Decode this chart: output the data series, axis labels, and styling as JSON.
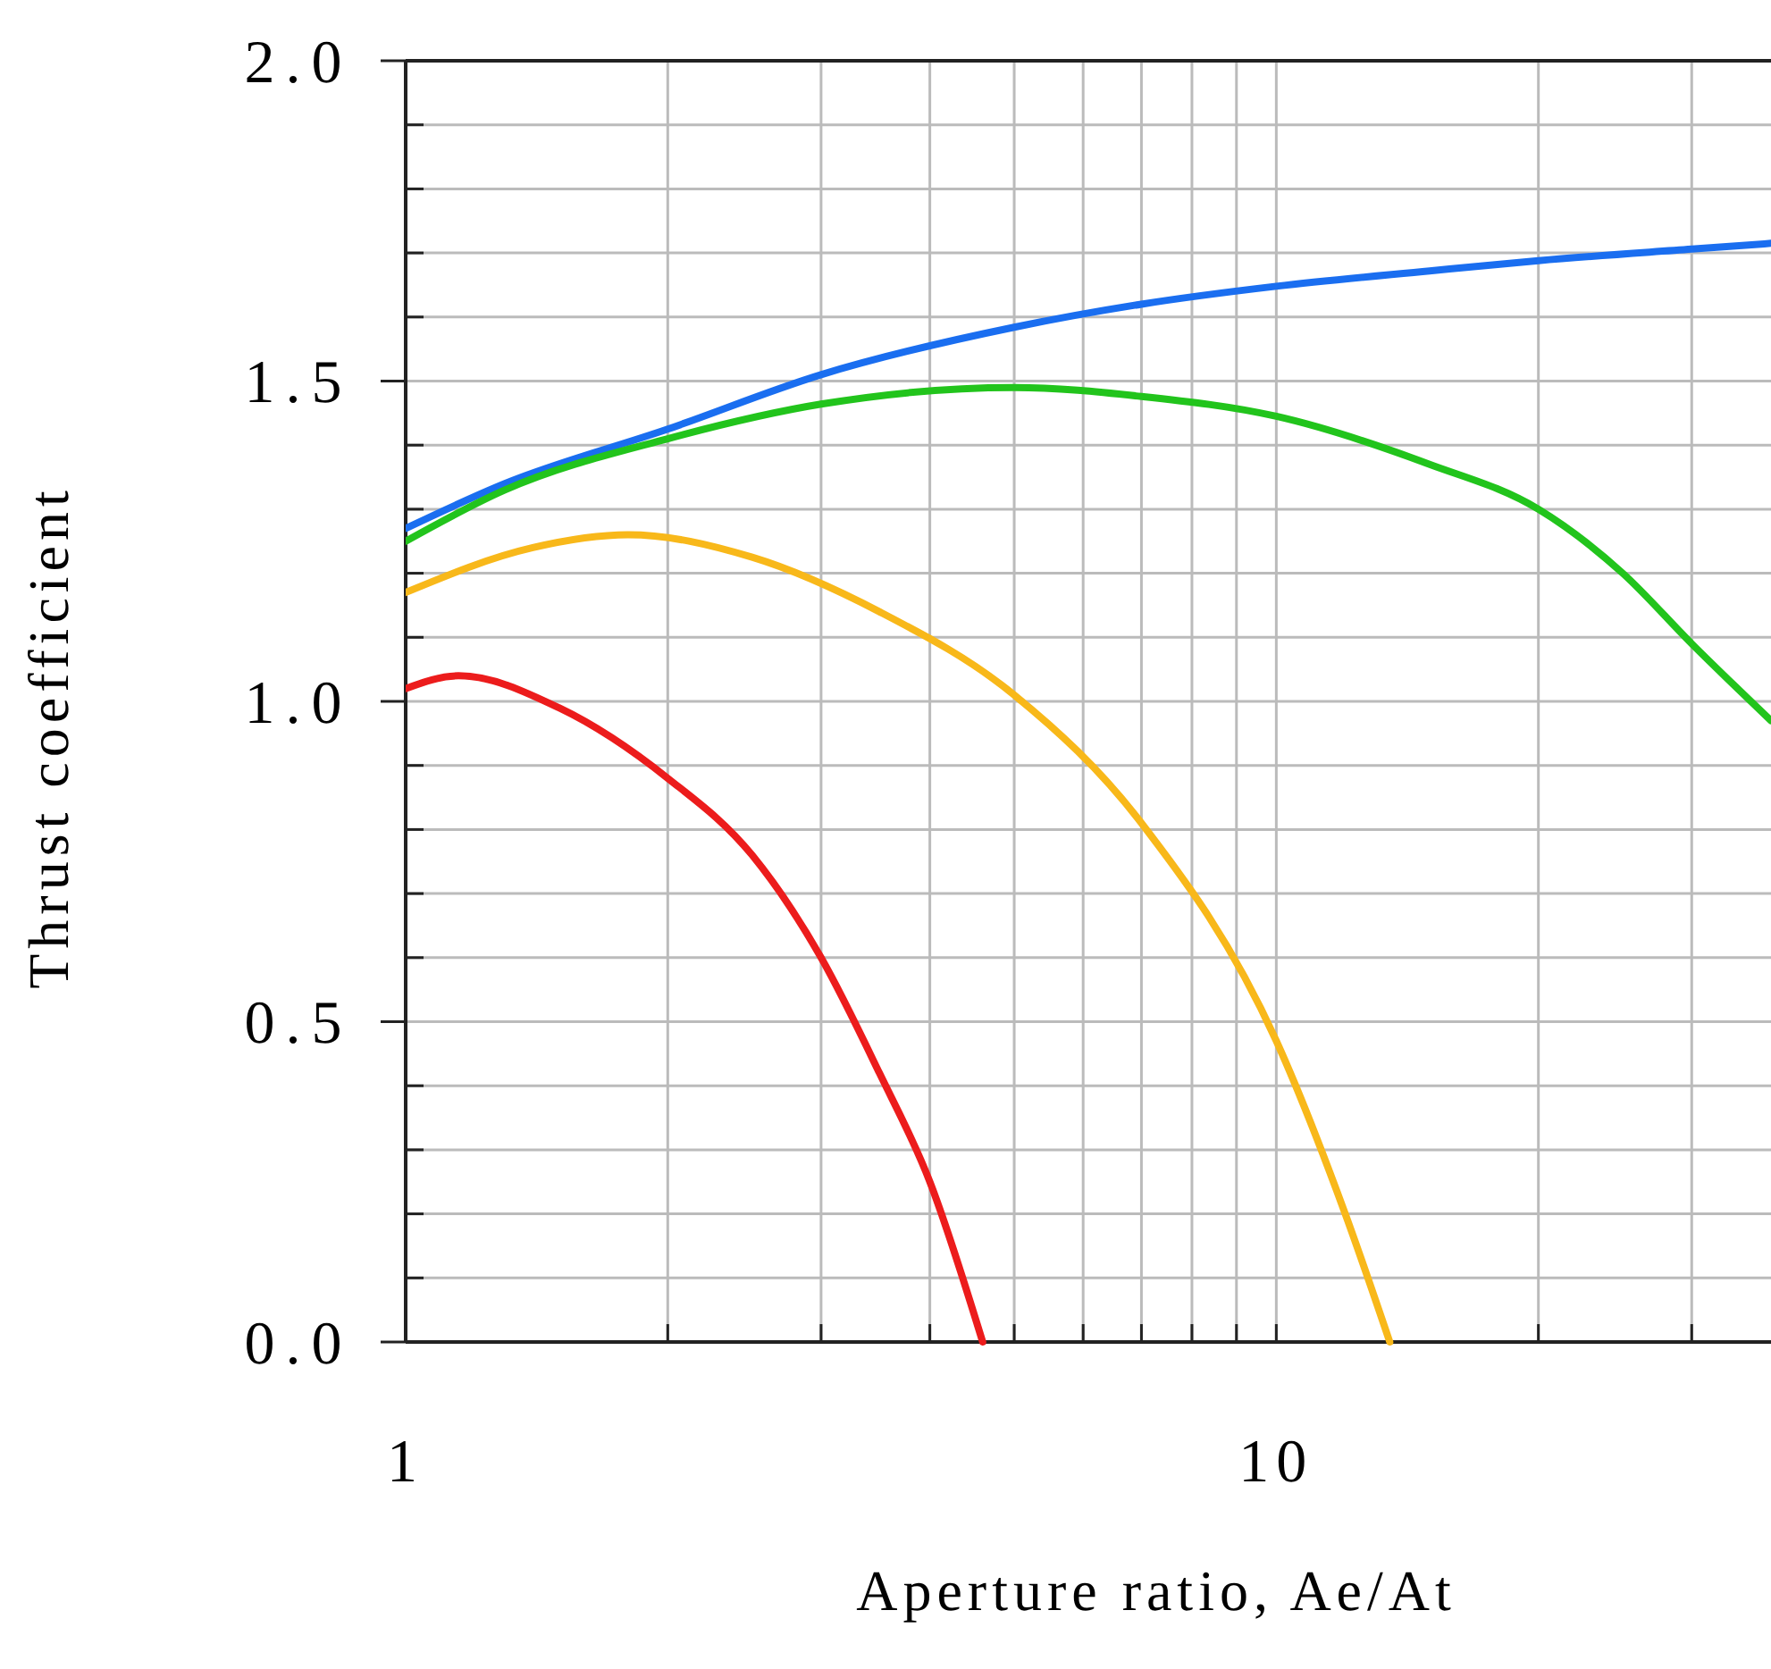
{
  "chart_data": {
    "type": "line",
    "xlabel": "Aperture ratio, Ae/At",
    "ylabel": "Thrust coefficient",
    "log": "x",
    "grid": true,
    "marker": "none",
    "line_style": "solid",
    "xlim": [
      1,
      37
    ],
    "xticks": [
      1,
      {
        "value": 2,
        "label": null
      },
      {
        "value": 3,
        "label": null
      },
      {
        "value": 4,
        "label": null
      },
      {
        "value": 5,
        "label": null
      },
      {
        "value": 6,
        "label": null
      },
      {
        "value": 7,
        "label": null
      },
      {
        "value": 8,
        "label": null
      },
      {
        "value": 9,
        "label": null
      },
      10,
      {
        "value": 20,
        "label": null
      },
      {
        "value": 30,
        "label": null
      }
    ],
    "ylim": [
      0,
      2
    ],
    "yticks": [
      {
        "value": 0,
        "label": "0.0"
      },
      {
        "value": 0.1,
        "label": null
      },
      {
        "value": 0.2,
        "label": null
      },
      {
        "value": 0.3,
        "label": null
      },
      {
        "value": 0.4,
        "label": null
      },
      {
        "value": 0.5,
        "label": "0.5"
      },
      {
        "value": 0.6,
        "label": null
      },
      {
        "value": 0.7,
        "label": null
      },
      {
        "value": 0.8,
        "label": null
      },
      {
        "value": 0.9,
        "label": null
      },
      {
        "value": 1,
        "label": "1.0"
      },
      {
        "value": 1.1,
        "label": null
      },
      {
        "value": 1.2,
        "label": null
      },
      {
        "value": 1.3,
        "label": null
      },
      {
        "value": 1.4,
        "label": null
      },
      {
        "value": 1.5,
        "label": "1.5"
      },
      {
        "value": 1.6,
        "label": null
      },
      {
        "value": 1.7,
        "label": null
      },
      {
        "value": 1.8,
        "label": null
      },
      {
        "value": 1.9,
        "label": null
      },
      {
        "value": 2,
        "label": "2.0"
      }
    ],
    "series": [
      {
        "color": "#1a6ef0",
        "x": [
          1,
          1.3,
          2,
          3,
          5,
          7,
          10,
          15,
          20,
          30,
          37
        ],
        "values": [
          1.27,
          1.34,
          1.425,
          1.51,
          1.584,
          1.62,
          1.648,
          1.672,
          1.688,
          1.706,
          1.715
        ]
      },
      {
        "color": "#22c41c",
        "x": [
          1,
          1.3,
          2,
          3,
          5,
          7,
          10,
          15,
          20,
          25,
          30,
          37
        ],
        "values": [
          1.25,
          1.33,
          1.41,
          1.464,
          1.49,
          1.476,
          1.445,
          1.37,
          1.3,
          1.2,
          1.09,
          0.97
        ]
      },
      {
        "color": "#f8b81a",
        "x": [
          1,
          1.4,
          1.8,
          2.5,
          3.5,
          5,
          7,
          10,
          12,
          13.5
        ],
        "values": [
          1.17,
          1.24,
          1.26,
          1.225,
          1.14,
          1.01,
          0.81,
          0.47,
          0.2,
          0
        ]
      },
      {
        "color": "#ec1c1c",
        "x": [
          1,
          1.15,
          1.5,
          2,
          2.5,
          3,
          3.5,
          4,
          4.6
        ],
        "values": [
          1.02,
          1.04,
          0.99,
          0.88,
          0.76,
          0.6,
          0.42,
          0.25,
          0
        ]
      }
    ]
  }
}
